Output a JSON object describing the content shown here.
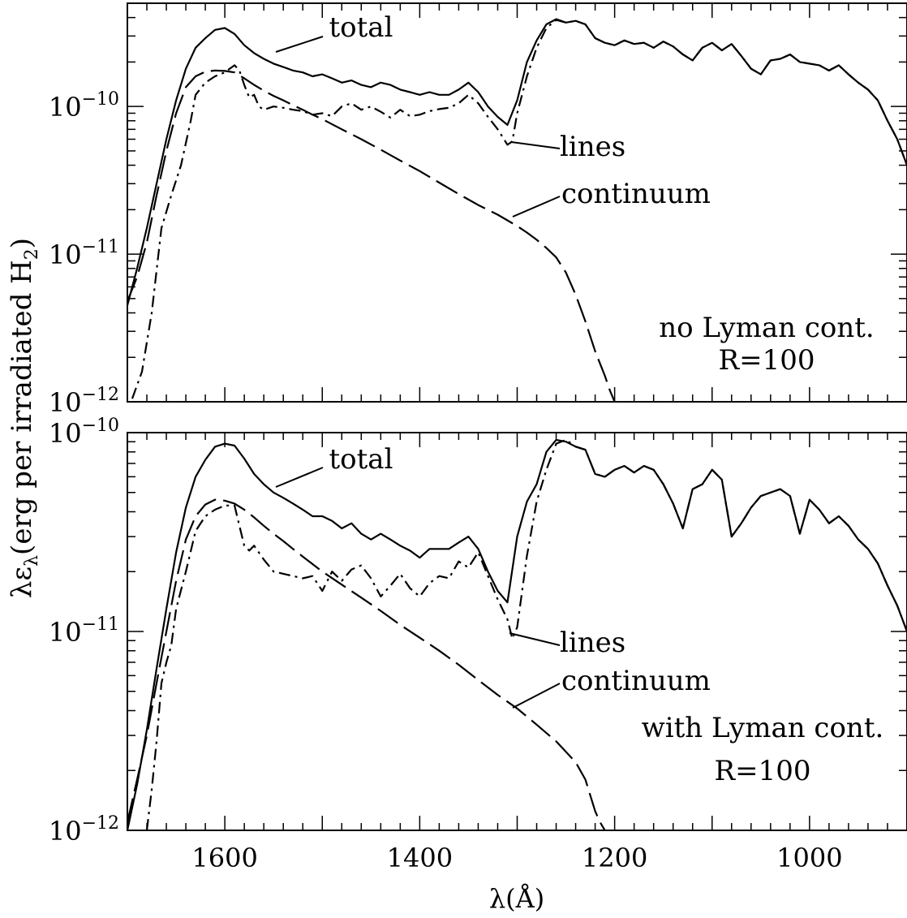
{
  "figure": {
    "ylabel_main": "λε",
    "ylabel_sub": "λ",
    "ylabel_rest": "(erg per irradiated H",
    "ylabel_h2sub": "2",
    "ylabel_close": ")",
    "xlabel": "λ(Å)"
  },
  "chart_data": [
    {
      "type": "line",
      "scale_y": "log",
      "xlim": [
        1700,
        900
      ],
      "ylim": [
        1e-12,
        5e-10
      ],
      "x_ticks": [
        1600,
        1400,
        1200,
        1000
      ],
      "x_tick_labels": [
        "1600",
        "1400",
        "1200",
        "1000"
      ],
      "y_ticks": [
        {
          "v": 1e-10,
          "base": "10",
          "exp": "−10"
        },
        {
          "v": 1e-11,
          "base": "10",
          "exp": "−11"
        },
        {
          "v": 1e-12,
          "base": "10",
          "exp": "−12"
        }
      ],
      "annotation_lines": [
        "no Lyman cont.",
        "R=100"
      ],
      "series": [
        {
          "name": "total",
          "style": "solid",
          "x": [
            1700,
            1690,
            1680,
            1670,
            1660,
            1650,
            1640,
            1630,
            1620,
            1610,
            1600,
            1590,
            1580,
            1570,
            1560,
            1550,
            1540,
            1530,
            1520,
            1510,
            1500,
            1490,
            1480,
            1470,
            1460,
            1450,
            1440,
            1430,
            1420,
            1410,
            1400,
            1390,
            1380,
            1370,
            1360,
            1350,
            1340,
            1330,
            1320,
            1310,
            1300,
            1290,
            1280,
            1270,
            1260,
            1250,
            1240,
            1230,
            1220,
            1210,
            1200,
            1190,
            1180,
            1170,
            1160,
            1150,
            1140,
            1130,
            1120,
            1110,
            1100,
            1090,
            1080,
            1070,
            1060,
            1050,
            1040,
            1030,
            1020,
            1010,
            1000,
            990,
            980,
            970,
            960,
            950,
            940,
            930,
            920,
            910,
            900
          ],
          "y": [
            4.5e-12,
            8e-12,
            1.5e-11,
            3e-11,
            6e-11,
            1.1e-10,
            1.8e-10,
            2.5e-10,
            2.9e-10,
            3.3e-10,
            3.4e-10,
            3.1e-10,
            2.6e-10,
            2.3e-10,
            2.1e-10,
            1.95e-10,
            1.85e-10,
            1.75e-10,
            1.7e-10,
            1.6e-10,
            1.65e-10,
            1.55e-10,
            1.45e-10,
            1.5e-10,
            1.4e-10,
            1.35e-10,
            1.45e-10,
            1.4e-10,
            1.3e-10,
            1.25e-10,
            1.2e-10,
            1.25e-10,
            1.2e-10,
            1.2e-10,
            1.3e-10,
            1.45e-10,
            1.25e-10,
            1e-10,
            8.5e-11,
            7.5e-11,
            1.1e-10,
            2e-10,
            2.8e-10,
            3.6e-10,
            3.9e-10,
            3.7e-10,
            3.8e-10,
            3.6e-10,
            2.9e-10,
            2.7e-10,
            2.6e-10,
            2.8e-10,
            2.65e-10,
            2.7e-10,
            2.5e-10,
            2.75e-10,
            2.55e-10,
            2.25e-10,
            2.05e-10,
            2.5e-10,
            2.7e-10,
            2.4e-10,
            2.65e-10,
            2.2e-10,
            1.8e-10,
            1.65e-10,
            2.05e-10,
            2.1e-10,
            2.25e-10,
            2e-10,
            1.95e-10,
            1.9e-10,
            1.75e-10,
            1.9e-10,
            1.65e-10,
            1.45e-10,
            1.3e-10,
            1.1e-10,
            8e-11,
            6e-11,
            4e-11
          ]
        },
        {
          "name": "lines",
          "style": "dashdot",
          "x": [
            1695,
            1685,
            1675,
            1665,
            1655,
            1645,
            1635,
            1630,
            1620,
            1610,
            1600,
            1595,
            1590,
            1585,
            1580,
            1575,
            1570,
            1565,
            1560,
            1550,
            1540,
            1530,
            1520,
            1510,
            1500,
            1490,
            1480,
            1470,
            1460,
            1450,
            1440,
            1430,
            1420,
            1410,
            1400,
            1390,
            1380,
            1370,
            1360,
            1350,
            1340,
            1330,
            1320,
            1310,
            1305,
            1300,
            1290,
            1280,
            1270,
            1260,
            1250,
            1240,
            1230,
            1220,
            1210,
            1200,
            1190,
            1180,
            1170,
            1160,
            1150,
            1140,
            1130,
            1120,
            1110,
            1100,
            1090,
            1080,
            1070,
            1060,
            1050,
            1040,
            1030,
            1020,
            1010,
            1000,
            990,
            980,
            970,
            960,
            950,
            940,
            930,
            920,
            910,
            900
          ],
          "y": [
            1.05e-12,
            1.6e-12,
            4e-12,
            1.5e-11,
            2.5e-11,
            4e-11,
            8e-11,
            1.2e-10,
            1.45e-10,
            1.6e-10,
            1.7e-10,
            1.8e-10,
            1.9e-10,
            1.75e-10,
            1.4e-10,
            1.15e-10,
            1.2e-10,
            1e-10,
            9.5e-11,
            1e-10,
            9.8e-11,
            9.5e-11,
            9.3e-11,
            8.8e-11,
            9e-11,
            8.6e-11,
            1e-10,
            1.05e-10,
            9.5e-11,
            1e-10,
            9.2e-11,
            8.4e-11,
            9.5e-11,
            8.6e-11,
            8.8e-11,
            9.3e-11,
            9.6e-11,
            9.8e-11,
            1.05e-10,
            1.2e-10,
            1.05e-10,
            8.5e-11,
            7e-11,
            5.5e-11,
            5.8e-11,
            9e-11,
            1.6e-10,
            2.5e-10,
            3.4e-10,
            3.85e-10,
            3.7e-10,
            3.8e-10,
            3.6e-10,
            2.9e-10,
            2.7e-10,
            2.6e-10,
            2.8e-10,
            2.65e-10,
            2.7e-10,
            2.5e-10,
            2.75e-10,
            2.55e-10,
            2.25e-10,
            2.05e-10,
            2.5e-10,
            2.7e-10,
            2.4e-10,
            2.65e-10,
            2.2e-10,
            1.8e-10,
            1.65e-10,
            2.05e-10,
            2.1e-10,
            2.25e-10,
            2e-10,
            1.95e-10,
            1.9e-10,
            1.75e-10,
            1.9e-10,
            1.65e-10,
            1.45e-10,
            1.3e-10,
            1.1e-10,
            8e-11,
            6e-11,
            4e-11
          ]
        },
        {
          "name": "continuum",
          "style": "dashed",
          "x": [
            1700,
            1690,
            1680,
            1670,
            1660,
            1650,
            1640,
            1630,
            1620,
            1610,
            1600,
            1590,
            1580,
            1570,
            1560,
            1550,
            1540,
            1530,
            1520,
            1510,
            1500,
            1480,
            1460,
            1440,
            1420,
            1400,
            1380,
            1360,
            1340,
            1320,
            1300,
            1290,
            1280,
            1270,
            1260,
            1250,
            1240,
            1230,
            1220,
            1210,
            1205,
            1200
          ],
          "y": [
            4.8e-12,
            7e-12,
            1.2e-11,
            2.5e-11,
            5e-11,
            9e-11,
            1.35e-10,
            1.6e-10,
            1.72e-10,
            1.75e-10,
            1.74e-10,
            1.7e-10,
            1.55e-10,
            1.4e-10,
            1.28e-10,
            1.18e-10,
            1.1e-10,
            1.02e-10,
            9.5e-11,
            8.8e-11,
            8.2e-11,
            7e-11,
            6e-11,
            5.1e-11,
            4.3e-11,
            3.65e-11,
            3.05e-11,
            2.55e-11,
            2.15e-11,
            1.85e-11,
            1.55e-11,
            1.4e-11,
            1.25e-11,
            1.1e-11,
            9.5e-12,
            7.5e-12,
            5.3e-12,
            3.5e-12,
            2.2e-12,
            1.5e-12,
            1.2e-12,
            1e-12
          ]
        }
      ]
    },
    {
      "type": "line",
      "scale_y": "log",
      "xlim": [
        1700,
        900
      ],
      "ylim": [
        1e-12,
        1e-10
      ],
      "x_ticks": [
        1600,
        1400,
        1200,
        1000
      ],
      "x_tick_labels": [
        "1600",
        "1400",
        "1200",
        "1000"
      ],
      "y_ticks": [
        {
          "v": 1e-10,
          "base": "10",
          "exp": "−10"
        },
        {
          "v": 1e-11,
          "base": "10",
          "exp": "−11"
        },
        {
          "v": 1e-12,
          "base": "10",
          "exp": "−12"
        }
      ],
      "annotation_lines": [
        "with Lyman cont.",
        "R=100"
      ],
      "series": [
        {
          "name": "total",
          "style": "solid",
          "x": [
            1700,
            1690,
            1680,
            1670,
            1660,
            1650,
            1640,
            1630,
            1620,
            1610,
            1600,
            1590,
            1580,
            1570,
            1560,
            1550,
            1540,
            1530,
            1520,
            1510,
            1500,
            1490,
            1480,
            1470,
            1460,
            1450,
            1440,
            1430,
            1420,
            1410,
            1400,
            1390,
            1380,
            1370,
            1360,
            1350,
            1340,
            1330,
            1320,
            1310,
            1300,
            1290,
            1280,
            1270,
            1260,
            1250,
            1240,
            1230,
            1220,
            1210,
            1200,
            1190,
            1180,
            1170,
            1160,
            1150,
            1140,
            1130,
            1120,
            1110,
            1100,
            1090,
            1080,
            1070,
            1060,
            1050,
            1040,
            1030,
            1020,
            1010,
            1000,
            990,
            980,
            970,
            960,
            950,
            940,
            930,
            920,
            910,
            900
          ],
          "y": [
            1e-12,
            1.7e-12,
            3.2e-12,
            6.5e-12,
            1.3e-11,
            2.5e-11,
            4.2e-11,
            6e-11,
            7.3e-11,
            8.5e-11,
            8.8e-11,
            8.6e-11,
            7.4e-11,
            6.2e-11,
            5.5e-11,
            5e-11,
            4.7e-11,
            4.4e-11,
            4.1e-11,
            3.8e-11,
            3.8e-11,
            3.6e-11,
            3.3e-11,
            3.5e-11,
            3.1e-11,
            2.9e-11,
            3.1e-11,
            2.9e-11,
            2.7e-11,
            2.55e-11,
            2.35e-11,
            2.6e-11,
            2.6e-11,
            2.6e-11,
            2.8e-11,
            3e-11,
            2.6e-11,
            2e-11,
            1.6e-11,
            1.4e-11,
            3e-11,
            4.5e-11,
            5.5e-11,
            8e-11,
            9.2e-11,
            9e-11,
            8.5e-11,
            8.2e-11,
            6.2e-11,
            6e-11,
            6.5e-11,
            6.8e-11,
            6.3e-11,
            6.8e-11,
            6.5e-11,
            5.5e-11,
            4.4e-11,
            3.3e-11,
            5.2e-11,
            5.5e-11,
            6.5e-11,
            5.8e-11,
            3e-11,
            3.5e-11,
            4.2e-11,
            4.8e-11,
            5e-11,
            5.2e-11,
            4.8e-11,
            3.1e-11,
            4.6e-11,
            4.1e-11,
            3.5e-11,
            3.8e-11,
            3.4e-11,
            2.9e-11,
            2.6e-11,
            2.2e-11,
            1.7e-11,
            1.35e-11,
            1e-11
          ]
        },
        {
          "name": "lines",
          "style": "dashdot",
          "x": [
            1680,
            1675,
            1670,
            1665,
            1660,
            1655,
            1650,
            1640,
            1630,
            1620,
            1610,
            1600,
            1590,
            1585,
            1580,
            1575,
            1570,
            1560,
            1550,
            1540,
            1530,
            1520,
            1510,
            1500,
            1490,
            1480,
            1470,
            1460,
            1450,
            1440,
            1430,
            1420,
            1410,
            1400,
            1390,
            1380,
            1370,
            1360,
            1350,
            1340,
            1330,
            1320,
            1310,
            1305,
            1300,
            1290,
            1280,
            1270,
            1260,
            1250,
            1240,
            1230,
            1220,
            1210,
            1200,
            1190,
            1180,
            1170,
            1160,
            1150,
            1140,
            1130,
            1120,
            1110,
            1100,
            1090,
            1080,
            1070,
            1060,
            1050,
            1040,
            1030,
            1020,
            1010,
            1000,
            990,
            980,
            970,
            960,
            950,
            940,
            930,
            920,
            910,
            900
          ],
          "y": [
            1e-12,
            1.6e-12,
            2.8e-12,
            5.5e-12,
            7e-12,
            8.5e-12,
            1.3e-11,
            2e-11,
            3.2e-11,
            3.8e-11,
            4.1e-11,
            4.3e-11,
            4.3e-11,
            3.4e-11,
            2.7e-11,
            2.55e-11,
            2.7e-11,
            2.3e-11,
            2e-11,
            1.95e-11,
            1.9e-11,
            1.85e-11,
            1.9e-11,
            1.6e-11,
            2e-11,
            1.8e-11,
            2.05e-11,
            2.15e-11,
            1.85e-11,
            1.5e-11,
            1.7e-11,
            1.95e-11,
            1.65e-11,
            1.5e-11,
            1.75e-11,
            1.9e-11,
            1.85e-11,
            2.25e-11,
            2.1e-11,
            2.5e-11,
            1.9e-11,
            1.45e-11,
            1.15e-11,
            9.2e-12,
            1.05e-11,
            2.4e-11,
            4.5e-11,
            6.5e-11,
            8.8e-11,
            9.2e-11,
            8.5e-11,
            8.2e-11,
            6.2e-11,
            6e-11,
            6.5e-11,
            6.8e-11,
            6.3e-11,
            6.8e-11,
            6.5e-11,
            5.5e-11,
            4.4e-11,
            3.3e-11,
            5.2e-11,
            5.5e-11,
            6.5e-11,
            5.8e-11,
            3e-11,
            3.5e-11,
            4.2e-11,
            4.8e-11,
            5e-11,
            5.2e-11,
            4.8e-11,
            3.1e-11,
            4.6e-11,
            4.1e-11,
            3.5e-11,
            3.8e-11,
            3.4e-11,
            2.9e-11,
            2.6e-11,
            2.2e-11,
            1.7e-11,
            1.35e-11,
            1e-11
          ]
        },
        {
          "name": "continuum",
          "style": "dashed",
          "x": [
            1700,
            1690,
            1680,
            1670,
            1660,
            1650,
            1640,
            1630,
            1620,
            1610,
            1600,
            1590,
            1580,
            1570,
            1560,
            1550,
            1540,
            1530,
            1520,
            1500,
            1480,
            1460,
            1440,
            1420,
            1400,
            1380,
            1360,
            1340,
            1320,
            1300,
            1280,
            1260,
            1240,
            1230,
            1225,
            1220,
            1215,
            1210
          ],
          "y": [
            1.1e-12,
            1.8e-12,
            3e-12,
            5.5e-12,
            1e-11,
            1.8e-11,
            2.9e-11,
            3.8e-11,
            4.35e-11,
            4.6e-11,
            4.55e-11,
            4.4e-11,
            4.1e-11,
            3.75e-11,
            3.4e-11,
            3.1e-11,
            2.85e-11,
            2.6e-11,
            2.38e-11,
            2e-11,
            1.72e-11,
            1.48e-11,
            1.27e-11,
            1.08e-11,
            9.3e-12,
            8e-12,
            6.8e-12,
            5.7e-12,
            4.8e-12,
            4.1e-12,
            3.4e-12,
            2.8e-12,
            2.2e-12,
            1.8e-12,
            1.5e-12,
            1.25e-12,
            1.1e-12,
            1e-12
          ]
        }
      ]
    }
  ]
}
